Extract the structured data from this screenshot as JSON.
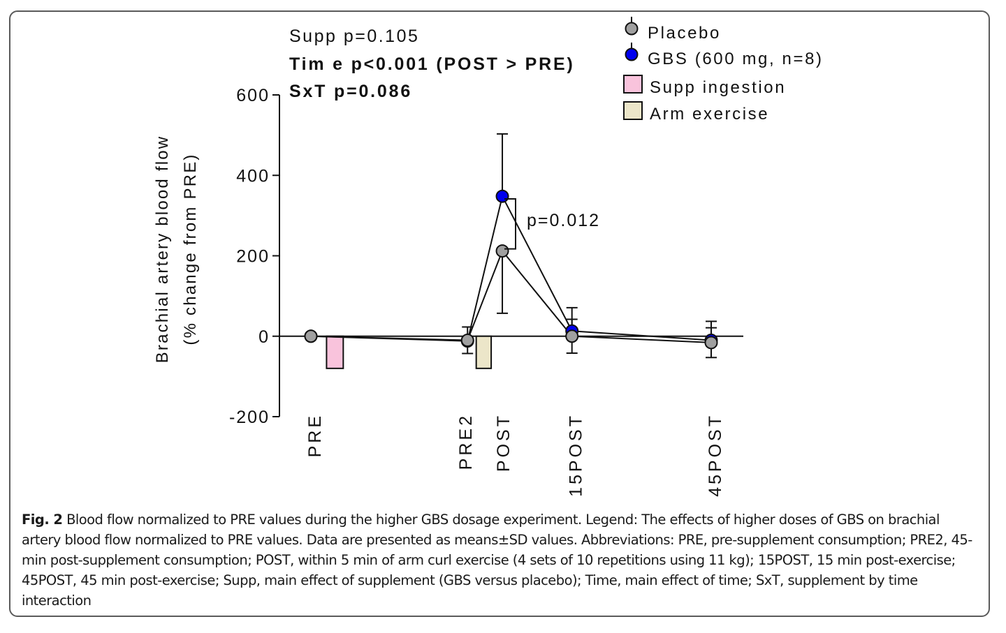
{
  "figure": {
    "caption_label": "Fig. 2",
    "caption_text": "Blood flow normalized to PRE values during the higher GBS dosage experiment. Legend: The effects of higher doses of GBS on brachial artery blood flow normalized to PRE values. Data are presented as means±SD values. Abbreviations: PRE, pre-supplement consumption; PRE2, 45-min post-supplement consumption; POST, within 5 min of arm curl exercise (4 sets of 10 repetitions using 11 kg); 15POST, 15 min post-exercise; 45POST, 45 min post-exercise; Supp, main effect of supplement (GBS versus placebo); Time, main effect of time; SxT, supplement by time interaction"
  },
  "chart_data": {
    "type": "line",
    "ylabel_line1": "Brachial artery blood flow",
    "ylabel_line2": "(% change from PRE)",
    "ylim": [
      -200,
      600
    ],
    "yticks": [
      -200,
      0,
      200,
      400,
      600
    ],
    "ytick_labels": [
      "-200",
      "0",
      "200",
      "400",
      "600"
    ],
    "categories": [
      "PRE",
      "PRE2",
      "POST",
      "15POST",
      "45POST"
    ],
    "x_positions": [
      0,
      45,
      55,
      75,
      115
    ],
    "x_range": [
      -8,
      120
    ],
    "stats": {
      "supp": "Supp p=0.105",
      "time": "Tim e p<0.001 (POST > PRE)",
      "sxt": "SxT p=0.086"
    },
    "annotation": "p=0.012",
    "annotation_bracket": [
      212,
      345
    ],
    "legend": [
      {
        "label": "Placebo",
        "marker": "circle",
        "color": "#a0a0a0"
      },
      {
        "label": "GBS (600 mg, n=8)",
        "marker": "circle",
        "color": "#0000ee"
      },
      {
        "label": "Supp ingestion",
        "marker": "square",
        "color": "#f9c3dc"
      },
      {
        "label": "Arm exercise",
        "marker": "square",
        "color": "#ece6c9"
      }
    ],
    "series": [
      {
        "name": "GBS (600 mg, n=8)",
        "color": "#0000ee",
        "values": [
          0,
          -12,
          348,
          13,
          -10
        ],
        "sd": [
          0,
          0,
          155,
          58,
          47
        ]
      },
      {
        "name": "Placebo",
        "color": "#a0a0a0",
        "values": [
          0,
          -10,
          212,
          0,
          -16
        ],
        "sd": [
          0,
          33,
          155,
          42,
          37
        ]
      }
    ],
    "bars": [
      {
        "name": "Supp ingestion",
        "x": 4.5,
        "width": 4.8,
        "value": -80,
        "color": "#f9c3dc"
      },
      {
        "name": "Arm exercise",
        "x": 47.5,
        "width": 4.3,
        "value": -80,
        "color": "#ece6c9"
      }
    ]
  }
}
